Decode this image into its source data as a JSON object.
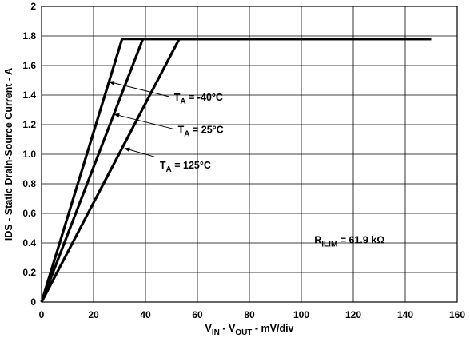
{
  "chart_data": {
    "type": "line",
    "xlim": [
      0,
      160
    ],
    "ylim": [
      0,
      2
    ],
    "x_ticks": [
      0,
      20,
      40,
      60,
      80,
      100,
      120,
      140,
      160
    ],
    "y_ticks": [
      0,
      0.2,
      0.4,
      0.6,
      0.8,
      1.0,
      1.2,
      1.4,
      1.6,
      1.8,
      2
    ],
    "x_tick_labels": [
      "0",
      "20",
      "40",
      "60",
      "80",
      "100",
      "120",
      "140",
      "160"
    ],
    "y_tick_labels": [
      "0",
      "0.2",
      "0.4",
      "0.6",
      "0.8",
      "1.0",
      "1.2",
      "1.4",
      "1.6",
      "1.8",
      "2"
    ],
    "grid": true,
    "xlabel": {
      "main": "V",
      "sub1": "IN",
      "mid": " - V",
      "sub2": "OUT",
      "tail": " - mV/div"
    },
    "ylabel": "IDS - Static Drain-Source Current - A",
    "series": [
      {
        "name": "TA = -40°C",
        "x": [
          0,
          31,
          150
        ],
        "y": [
          0,
          1.78,
          1.78
        ]
      },
      {
        "name": "TA = 25°C",
        "x": [
          0,
          39,
          150
        ],
        "y": [
          0,
          1.78,
          1.78
        ]
      },
      {
        "name": "TA = 125°C",
        "x": [
          0,
          53,
          150
        ],
        "y": [
          0,
          1.78,
          1.78
        ]
      }
    ],
    "annotations": [
      {
        "id": "ta-m40",
        "main": "T",
        "sub": "A",
        "tail": " = -40°C",
        "anchor": [
          26,
          1.49
        ],
        "text_at": [
          49,
          1.39
        ],
        "label_at": [
          51,
          1.39
        ]
      },
      {
        "id": "ta-25",
        "main": "T",
        "sub": "A",
        "tail": " = 25°C",
        "anchor": [
          28,
          1.27
        ],
        "text_at": [
          51,
          1.17
        ],
        "label_at": [
          52.5,
          1.17
        ]
      },
      {
        "id": "ta-125",
        "main": "T",
        "sub": "A",
        "tail": " = 125°C",
        "anchor": [
          32,
          1.04
        ],
        "text_at": [
          44,
          0.98
        ],
        "label_at": [
          45.5,
          0.93
        ]
      }
    ],
    "rilim_label": {
      "main": "R",
      "sub": "ILIM",
      "tail": " = 61.9 kΩ",
      "at": [
        105,
        0.42
      ]
    }
  }
}
